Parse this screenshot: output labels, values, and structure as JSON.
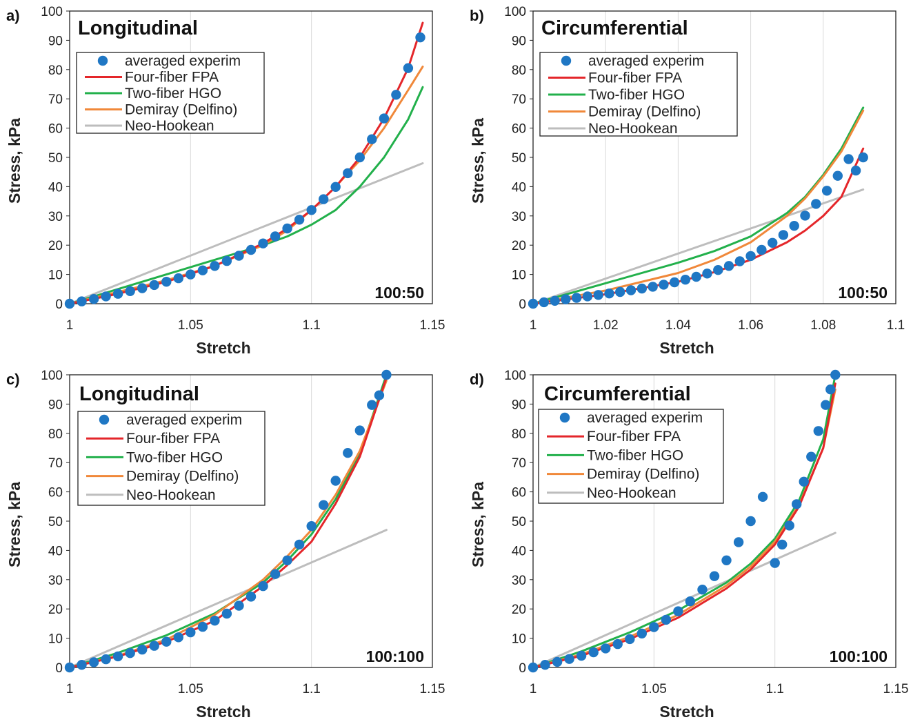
{
  "chart_data": [
    {
      "type": "line",
      "panel_label": "a)",
      "title": "Longitudinal",
      "annotation": "100:50",
      "xlabel": "Stretch",
      "ylabel": "Stress, kPa",
      "xlim": [
        1,
        1.15
      ],
      "ylim": [
        0,
        100
      ],
      "xticks": [
        "1",
        "1.05",
        "1.1",
        "1.15"
      ],
      "yticks": [
        "0",
        "10",
        "20",
        "30",
        "40",
        "50",
        "60",
        "70",
        "80",
        "90",
        "100"
      ],
      "grid": "vertical",
      "legend_position": "top-left",
      "series": [
        {
          "name": "averaged experim",
          "color": "#1f77c4",
          "marker": "circle",
          "x": [
            1,
            1.005,
            1.01,
            1.015,
            1.02,
            1.025,
            1.03,
            1.035,
            1.04,
            1.045,
            1.05,
            1.055,
            1.06,
            1.065,
            1.07,
            1.075,
            1.08,
            1.085,
            1.09,
            1.095,
            1.1,
            1.105,
            1.11,
            1.115,
            1.12,
            1.125,
            1.13,
            1.135,
            1.14,
            1.145
          ],
          "y": [
            0,
            0.8,
            1.6,
            2.5,
            3.4,
            4.3,
            5.3,
            6.4,
            7.5,
            8.7,
            10,
            11.4,
            12.9,
            14.6,
            16.4,
            18.4,
            20.6,
            23,
            25.7,
            28.7,
            32,
            35.7,
            39.9,
            44.6,
            50,
            56.2,
            63.3,
            71.4,
            80.5,
            91
          ]
        },
        {
          "name": "Four-fiber FPA",
          "color": "#e4262a",
          "marker": "none",
          "x": [
            1,
            1.02,
            1.04,
            1.06,
            1.08,
            1.09,
            1.1,
            1.11,
            1.12,
            1.13,
            1.14,
            1.146
          ],
          "y": [
            0,
            3.4,
            7.5,
            12.9,
            20.6,
            25.7,
            32,
            39.9,
            50,
            63.3,
            80.5,
            96
          ]
        },
        {
          "name": "Two-fiber HGO",
          "color": "#22b04b",
          "marker": "none",
          "x": [
            1,
            1.02,
            1.04,
            1.06,
            1.08,
            1.09,
            1.1,
            1.11,
            1.12,
            1.13,
            1.14,
            1.146
          ],
          "y": [
            0,
            5,
            10,
            15,
            20,
            23,
            27,
            32,
            40,
            50,
            63,
            74
          ]
        },
        {
          "name": "Demiray (Delfino)",
          "color": "#f0883a",
          "marker": "none",
          "x": [
            1,
            1.02,
            1.04,
            1.06,
            1.08,
            1.09,
            1.1,
            1.11,
            1.12,
            1.13,
            1.14,
            1.146
          ],
          "y": [
            0,
            4,
            8,
            13,
            20,
            25,
            32,
            40,
            49,
            60,
            73,
            81
          ]
        },
        {
          "name": "Neo-Hookean",
          "color": "#bdbdbd",
          "marker": "none",
          "x": [
            1,
            1.146
          ],
          "y": [
            0,
            48
          ]
        }
      ]
    },
    {
      "type": "line",
      "panel_label": "b)",
      "title": "Circumferential",
      "annotation": "100:50",
      "xlabel": "Stretch",
      "ylabel": "Stress, kPa",
      "xlim": [
        1,
        1.1
      ],
      "ylim": [
        0,
        100
      ],
      "xticks": [
        "1",
        "1.02",
        "1.04",
        "1.06",
        "1.08",
        "1.1"
      ],
      "yticks": [
        "0",
        "10",
        "20",
        "30",
        "40",
        "50",
        "60",
        "70",
        "80",
        "90",
        "100"
      ],
      "grid": "vertical",
      "legend_position": "top-left",
      "series": [
        {
          "name": "averaged experim",
          "color": "#1f77c4",
          "marker": "circle",
          "x": [
            1,
            1.003,
            1.006,
            1.009,
            1.012,
            1.015,
            1.018,
            1.021,
            1.024,
            1.027,
            1.03,
            1.033,
            1.036,
            1.039,
            1.042,
            1.045,
            1.048,
            1.051,
            1.054,
            1.057,
            1.06,
            1.063,
            1.066,
            1.069,
            1.072,
            1.075,
            1.078,
            1.081,
            1.084,
            1.087,
            1.089,
            1.091
          ],
          "y": [
            0,
            0.5,
            1,
            1.5,
            2,
            2.5,
            3,
            3.5,
            4,
            4.6,
            5.2,
            5.8,
            6.5,
            7.3,
            8.2,
            9.2,
            10.3,
            11.5,
            12.9,
            14.5,
            16.3,
            18.4,
            20.8,
            23.5,
            26.6,
            30.1,
            34.1,
            38.6,
            43.7,
            49.4,
            45.5,
            50
          ]
        },
        {
          "name": "Four-fiber FPA",
          "color": "#e4262a",
          "marker": "none",
          "x": [
            1,
            1.02,
            1.04,
            1.05,
            1.06,
            1.07,
            1.075,
            1.08,
            1.085,
            1.091
          ],
          "y": [
            0,
            3.2,
            7.5,
            10.8,
            15,
            21,
            25,
            30,
            36.5,
            53
          ]
        },
        {
          "name": "Two-fiber HGO",
          "color": "#22b04b",
          "marker": "none",
          "x": [
            1,
            1.02,
            1.04,
            1.05,
            1.06,
            1.07,
            1.075,
            1.08,
            1.085,
            1.091
          ],
          "y": [
            0,
            7,
            14,
            18,
            23,
            31,
            36.5,
            44,
            53,
            67
          ]
        },
        {
          "name": "Demiray (Delfino)",
          "color": "#f0883a",
          "marker": "none",
          "x": [
            1,
            1.02,
            1.04,
            1.05,
            1.06,
            1.07,
            1.075,
            1.08,
            1.085,
            1.091
          ],
          "y": [
            0,
            4.5,
            10.5,
            15,
            21,
            30,
            36,
            43.5,
            52,
            66
          ]
        },
        {
          "name": "Neo-Hookean",
          "color": "#bdbdbd",
          "marker": "none",
          "x": [
            1,
            1.091
          ],
          "y": [
            0,
            39
          ]
        }
      ]
    },
    {
      "type": "line",
      "panel_label": "c)",
      "title": "Longitudinal",
      "annotation": "100:100",
      "xlabel": "Stretch",
      "ylabel": "Stress, kPa",
      "xlim": [
        1,
        1.15
      ],
      "ylim": [
        0,
        100
      ],
      "xticks": [
        "1",
        "1.05",
        "1.1",
        "1.15"
      ],
      "yticks": [
        "0",
        "10",
        "20",
        "30",
        "40",
        "50",
        "60",
        "70",
        "80",
        "90",
        "100"
      ],
      "grid": "vertical",
      "legend_position": "top-left",
      "series": [
        {
          "name": "averaged experim",
          "color": "#1f77c4",
          "marker": "circle",
          "x": [
            1,
            1.005,
            1.01,
            1.015,
            1.02,
            1.025,
            1.03,
            1.035,
            1.04,
            1.045,
            1.05,
            1.055,
            1.06,
            1.065,
            1.07,
            1.075,
            1.08,
            1.085,
            1.09,
            1.095,
            1.1,
            1.105,
            1.11,
            1.115,
            1.12,
            1.125,
            1.128,
            1.131
          ],
          "y": [
            0,
            0.9,
            1.8,
            2.8,
            3.8,
            4.9,
            6.1,
            7.4,
            8.8,
            10.3,
            12,
            13.9,
            16,
            18.4,
            21.1,
            24.2,
            27.8,
            31.9,
            36.6,
            42,
            48.3,
            55.5,
            63.8,
            73.3,
            81,
            89.7,
            93,
            100
          ]
        },
        {
          "name": "Four-fiber FPA",
          "color": "#e4262a",
          "marker": "none",
          "x": [
            1,
            1.02,
            1.04,
            1.06,
            1.08,
            1.09,
            1.1,
            1.11,
            1.12,
            1.131
          ],
          "y": [
            0,
            3.8,
            8.8,
            16,
            27.8,
            35,
            43,
            56,
            72,
            99
          ]
        },
        {
          "name": "Two-fiber HGO",
          "color": "#22b04b",
          "marker": "none",
          "x": [
            1,
            1.02,
            1.04,
            1.06,
            1.08,
            1.09,
            1.1,
            1.11,
            1.12,
            1.131
          ],
          "y": [
            0,
            5,
            11,
            18.5,
            29,
            36.5,
            45.5,
            57.5,
            73,
            100
          ]
        },
        {
          "name": "Demiray (Delfino)",
          "color": "#f0883a",
          "marker": "none",
          "x": [
            1,
            1.02,
            1.04,
            1.06,
            1.08,
            1.09,
            1.1,
            1.11,
            1.12,
            1.131
          ],
          "y": [
            0,
            4,
            9.5,
            18,
            30,
            38,
            47,
            59,
            74,
            98
          ]
        },
        {
          "name": "Neo-Hookean",
          "color": "#bdbdbd",
          "marker": "none",
          "x": [
            1,
            1.131
          ],
          "y": [
            0,
            47
          ]
        }
      ]
    },
    {
      "type": "line",
      "panel_label": "d)",
      "title": "Circumferential",
      "annotation": "100:100",
      "xlabel": "Stretch",
      "ylabel": "Stress, kPa",
      "xlim": [
        1,
        1.15
      ],
      "ylim": [
        0,
        100
      ],
      "xticks": [
        "1",
        "1.05",
        "1.1",
        "1.15"
      ],
      "yticks": [
        "0",
        "10",
        "20",
        "30",
        "40",
        "50",
        "60",
        "70",
        "80",
        "90",
        "100"
      ],
      "grid": "vertical",
      "legend_position": "top-left",
      "series": [
        {
          "name": "averaged experim",
          "color": "#1f77c4",
          "marker": "circle",
          "x": [
            1,
            1.005,
            1.01,
            1.015,
            1.02,
            1.025,
            1.03,
            1.035,
            1.04,
            1.045,
            1.05,
            1.055,
            1.06,
            1.065,
            1.07,
            1.075,
            1.08,
            1.085,
            1.09,
            1.095,
            1.1,
            1.103,
            1.106,
            1.109,
            1.112,
            1.115,
            1.118,
            1.121,
            1.123,
            1.125
          ],
          "y": [
            0,
            0.9,
            1.9,
            2.9,
            4,
            5.2,
            6.5,
            8,
            9.7,
            11.6,
            13.8,
            16.3,
            19.2,
            22.6,
            26.6,
            31.2,
            36.6,
            42.8,
            50,
            58.3,
            35.7,
            42,
            48.5,
            55.8,
            63.5,
            72,
            80.8,
            89.7,
            95,
            100
          ]
        },
        {
          "name": "Four-fiber FPA",
          "color": "#e4262a",
          "marker": "none",
          "x": [
            1,
            1.02,
            1.04,
            1.06,
            1.08,
            1.09,
            1.1,
            1.11,
            1.12,
            1.125
          ],
          "y": [
            0,
            4,
            9.7,
            17,
            27,
            33.5,
            42,
            55,
            75,
            97
          ]
        },
        {
          "name": "Two-fiber HGO",
          "color": "#22b04b",
          "marker": "none",
          "x": [
            1,
            1.02,
            1.04,
            1.06,
            1.08,
            1.09,
            1.1,
            1.11,
            1.12,
            1.125
          ],
          "y": [
            0,
            5.5,
            12,
            19.5,
            29,
            35.5,
            44,
            57,
            78,
            100
          ]
        },
        {
          "name": "Demiray (Delfino)",
          "color": "#f0883a",
          "marker": "none",
          "x": [
            1,
            1.02,
            1.04,
            1.06,
            1.08,
            1.09,
            1.1,
            1.11,
            1.12,
            1.125
          ],
          "y": [
            0,
            4.5,
            10.5,
            18,
            28,
            34.5,
            43,
            55.5,
            75,
            95
          ]
        },
        {
          "name": "Neo-Hookean",
          "color": "#bdbdbd",
          "marker": "none",
          "x": [
            1,
            1.125
          ],
          "y": [
            0,
            46
          ]
        }
      ]
    }
  ]
}
